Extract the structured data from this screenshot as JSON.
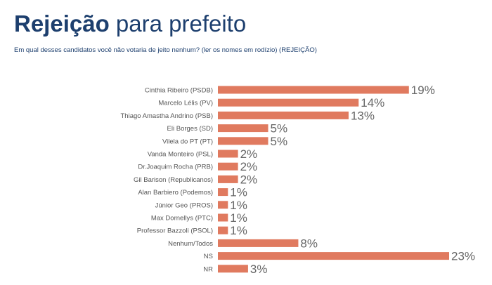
{
  "header": {
    "title_bold": "Rejeição",
    "title_rest": " para prefeito",
    "subtitle": "Em qual desses candidatos você não votaria de jeito nenhum? (ler os nomes em rodízio) (REJEIÇÃO)"
  },
  "chart_data": {
    "type": "bar",
    "orientation": "horizontal",
    "title": "Rejeição para prefeito",
    "subtitle": "Em qual desses candidatos você não votaria de jeito nenhum? (ler os nomes em rodízio) (REJEIÇÃO)",
    "categories": [
      "Cinthia Ribeiro (PSDB)",
      "Marcelo Lélis (PV)",
      "Thiago Amastha Andrino (PSB)",
      "Eli Borges (SD)",
      "Vilela do PT (PT)",
      "Vanda Monteiro (PSL)",
      "Dr.Joaquim Rocha (PRB)",
      "Gil Barison (Republicanos)",
      "Alan Barbiero (Podemos)",
      "Júnior Geo (PROS)",
      "Max Dornellys (PTC)",
      "Professor Bazzoli (PSOL)",
      "Nenhum/Todos",
      "NS",
      "NR"
    ],
    "values": [
      19,
      14,
      13,
      5,
      5,
      2,
      2,
      2,
      1,
      1,
      1,
      1,
      8,
      23,
      3
    ],
    "value_labels": [
      "19%",
      "14%",
      "13%",
      "5%",
      "5%",
      "2%",
      "2%",
      "2%",
      "1%",
      "1%",
      "1%",
      "1%",
      "8%",
      "23%",
      "3%"
    ],
    "unit": "%",
    "xlim": [
      0,
      23
    ],
    "bar_color": "#e07a5f",
    "grid": false,
    "legend": "none"
  }
}
